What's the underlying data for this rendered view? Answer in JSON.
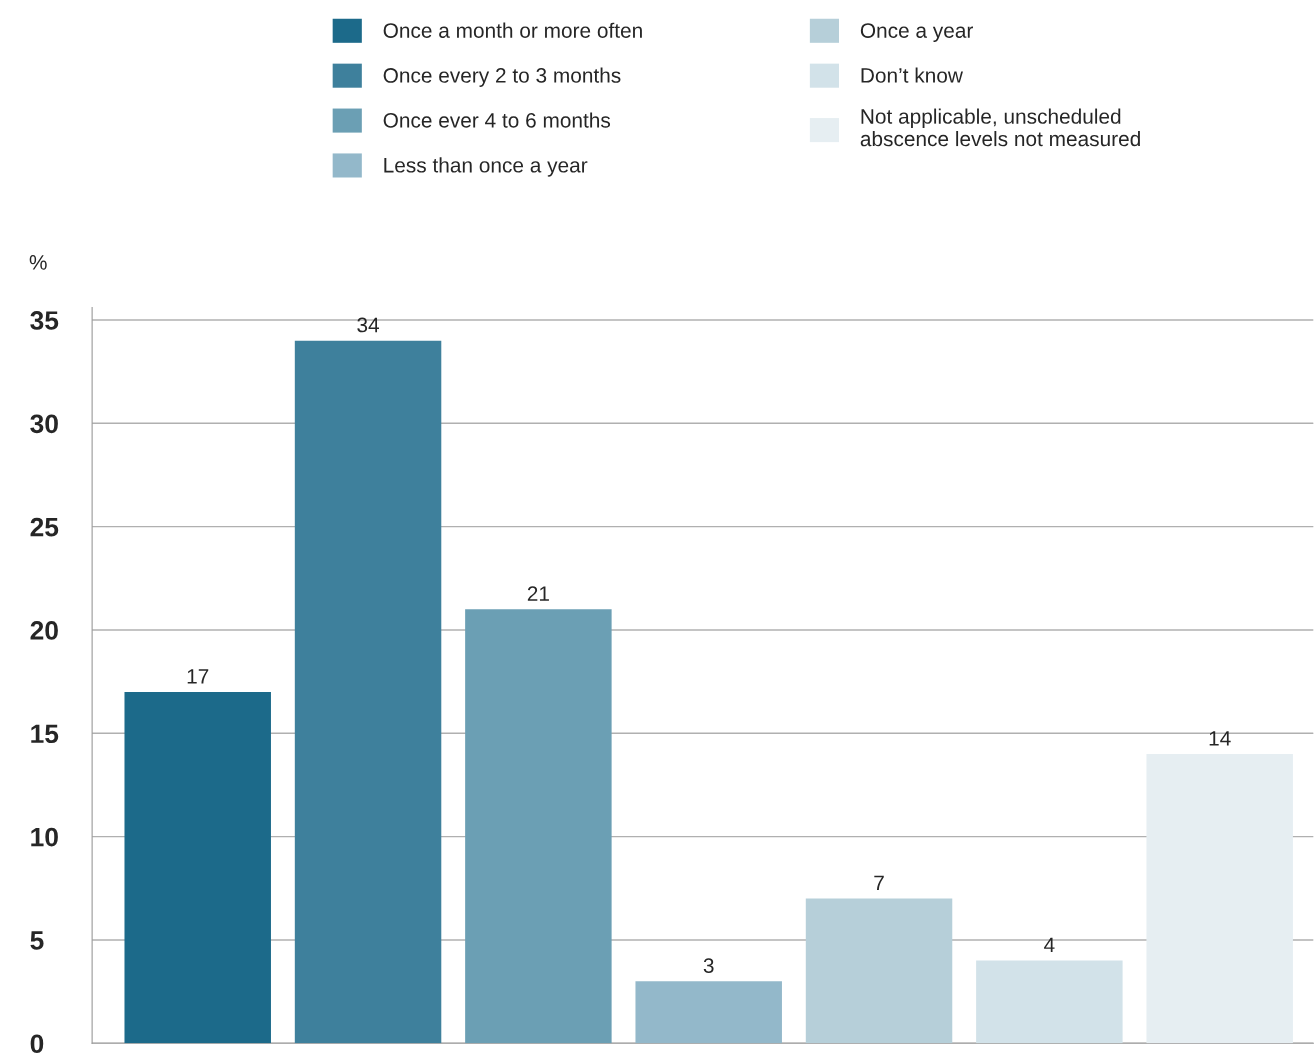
{
  "chart_data": {
    "type": "bar",
    "ylabel": "%",
    "categories": [
      null,
      null,
      null,
      null,
      null,
      null,
      null
    ],
    "series": [
      {
        "name": "Once a month or more often",
        "color": "#1c6a8a",
        "values": [
          17,
          null,
          null,
          null,
          null,
          null,
          null
        ]
      },
      {
        "name": "Once every 2 to 3 months",
        "color": "#3e809c",
        "values": [
          null,
          34,
          null,
          null,
          null,
          null,
          null
        ]
      },
      {
        "name": "Once ever 4 to 6 months",
        "color": "#6b9fb4",
        "values": [
          null,
          null,
          21,
          null,
          null,
          null,
          null
        ]
      },
      {
        "name": "Less than once a year",
        "color": "#93b8ca",
        "values": [
          null,
          null,
          null,
          3,
          null,
          null,
          null
        ]
      },
      {
        "name": "Once a year",
        "color": "#b6cfd9",
        "values": [
          null,
          null,
          null,
          null,
          7,
          null,
          null
        ]
      },
      {
        "name": "Don’t know",
        "color": "#d2e2e9",
        "values": [
          null,
          null,
          null,
          null,
          null,
          4,
          null
        ]
      },
      {
        "name": "Not applicable, unscheduled\nabscence levels not measured",
        "color": "#e6eef2",
        "values": [
          null,
          null,
          null,
          null,
          null,
          null,
          14
        ]
      }
    ],
    "ylim": [
      0,
      35.6
    ],
    "yticks": [
      0,
      5,
      10,
      15,
      20,
      25,
      30,
      35
    ],
    "grid": "y",
    "legend": "top",
    "data_labels": true,
    "tick_labels": "y"
  }
}
